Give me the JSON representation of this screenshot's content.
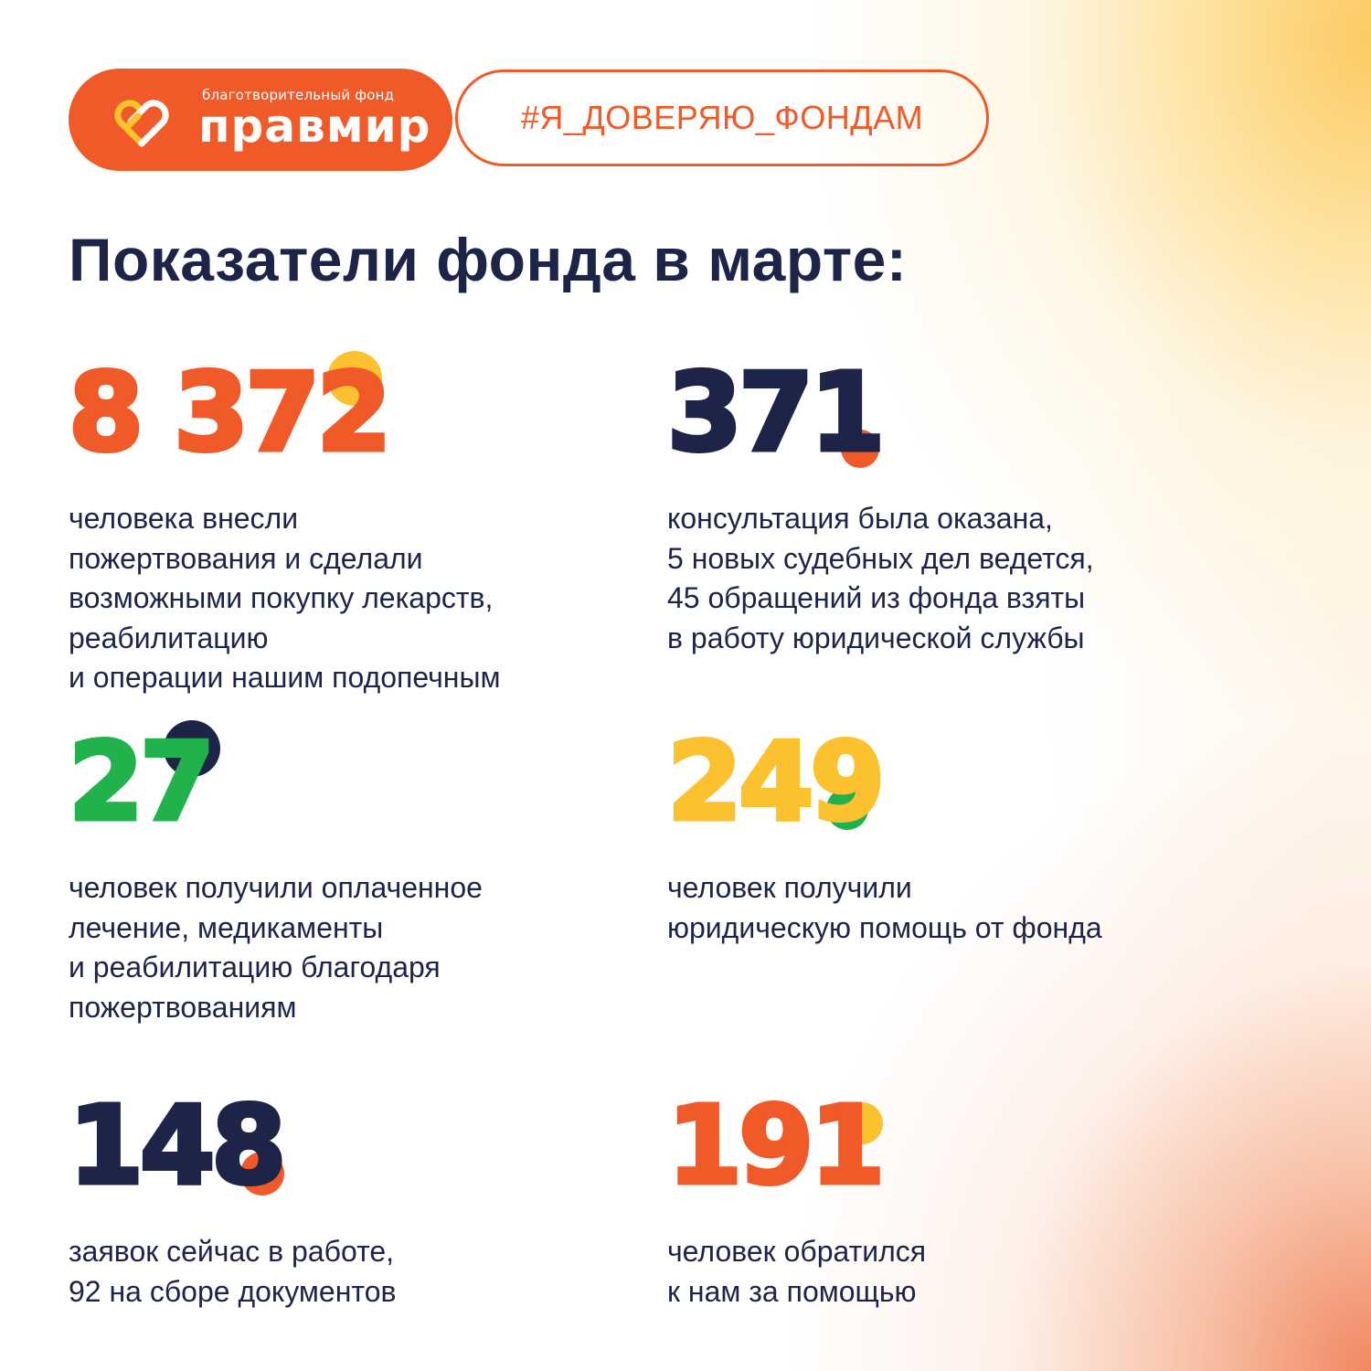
{
  "brand": {
    "subtitle": "благотворительный фонд",
    "name": "правмир",
    "logo_icon": "linked-hearts-icon",
    "color": "#f05a28"
  },
  "hashtag": "#Я_ДОВЕРЯЮ_ФОНДАМ",
  "title": "Показатели фонда в марте:",
  "stats": [
    {
      "number": "8 372",
      "number_color": "#f05a28",
      "dot_color": "#fcc12e",
      "lines": [
        "человека внесли",
        "пожертвования и сделали",
        "возможными покупку лекарств,",
        "реабилитацию",
        "и операции нашим подопечным"
      ]
    },
    {
      "number": "371",
      "number_color": "#1d2448",
      "dot_color": "#f05a28",
      "lines": [
        "консультация была оказана,",
        "5 новых судебных дел ведется,",
        "45 обращений из фонда взяты",
        "в работу юридической службы"
      ]
    },
    {
      "number": "27",
      "number_color": "#22b24c",
      "dot_color": "#1d2448",
      "lines": [
        "человек получили оплаченное",
        "лечение, медикаменты",
        "и реабилитацию благодаря",
        "пожертвованиям"
      ]
    },
    {
      "number": "249",
      "number_color": "#fcc12e",
      "dot_color": "#22b24c",
      "lines": [
        "человек получили",
        "юридическую помощь от фонда"
      ]
    },
    {
      "number": "148",
      "number_color": "#1d2448",
      "dot_color": "#f05a28",
      "lines": [
        "заявок сейчас в работе,",
        "92 на сборе документов"
      ]
    },
    {
      "number": "191",
      "number_color": "#f05a28",
      "dot_color": "#fcc12e",
      "lines": [
        "человек обратился",
        "к нам за помощью"
      ]
    }
  ]
}
